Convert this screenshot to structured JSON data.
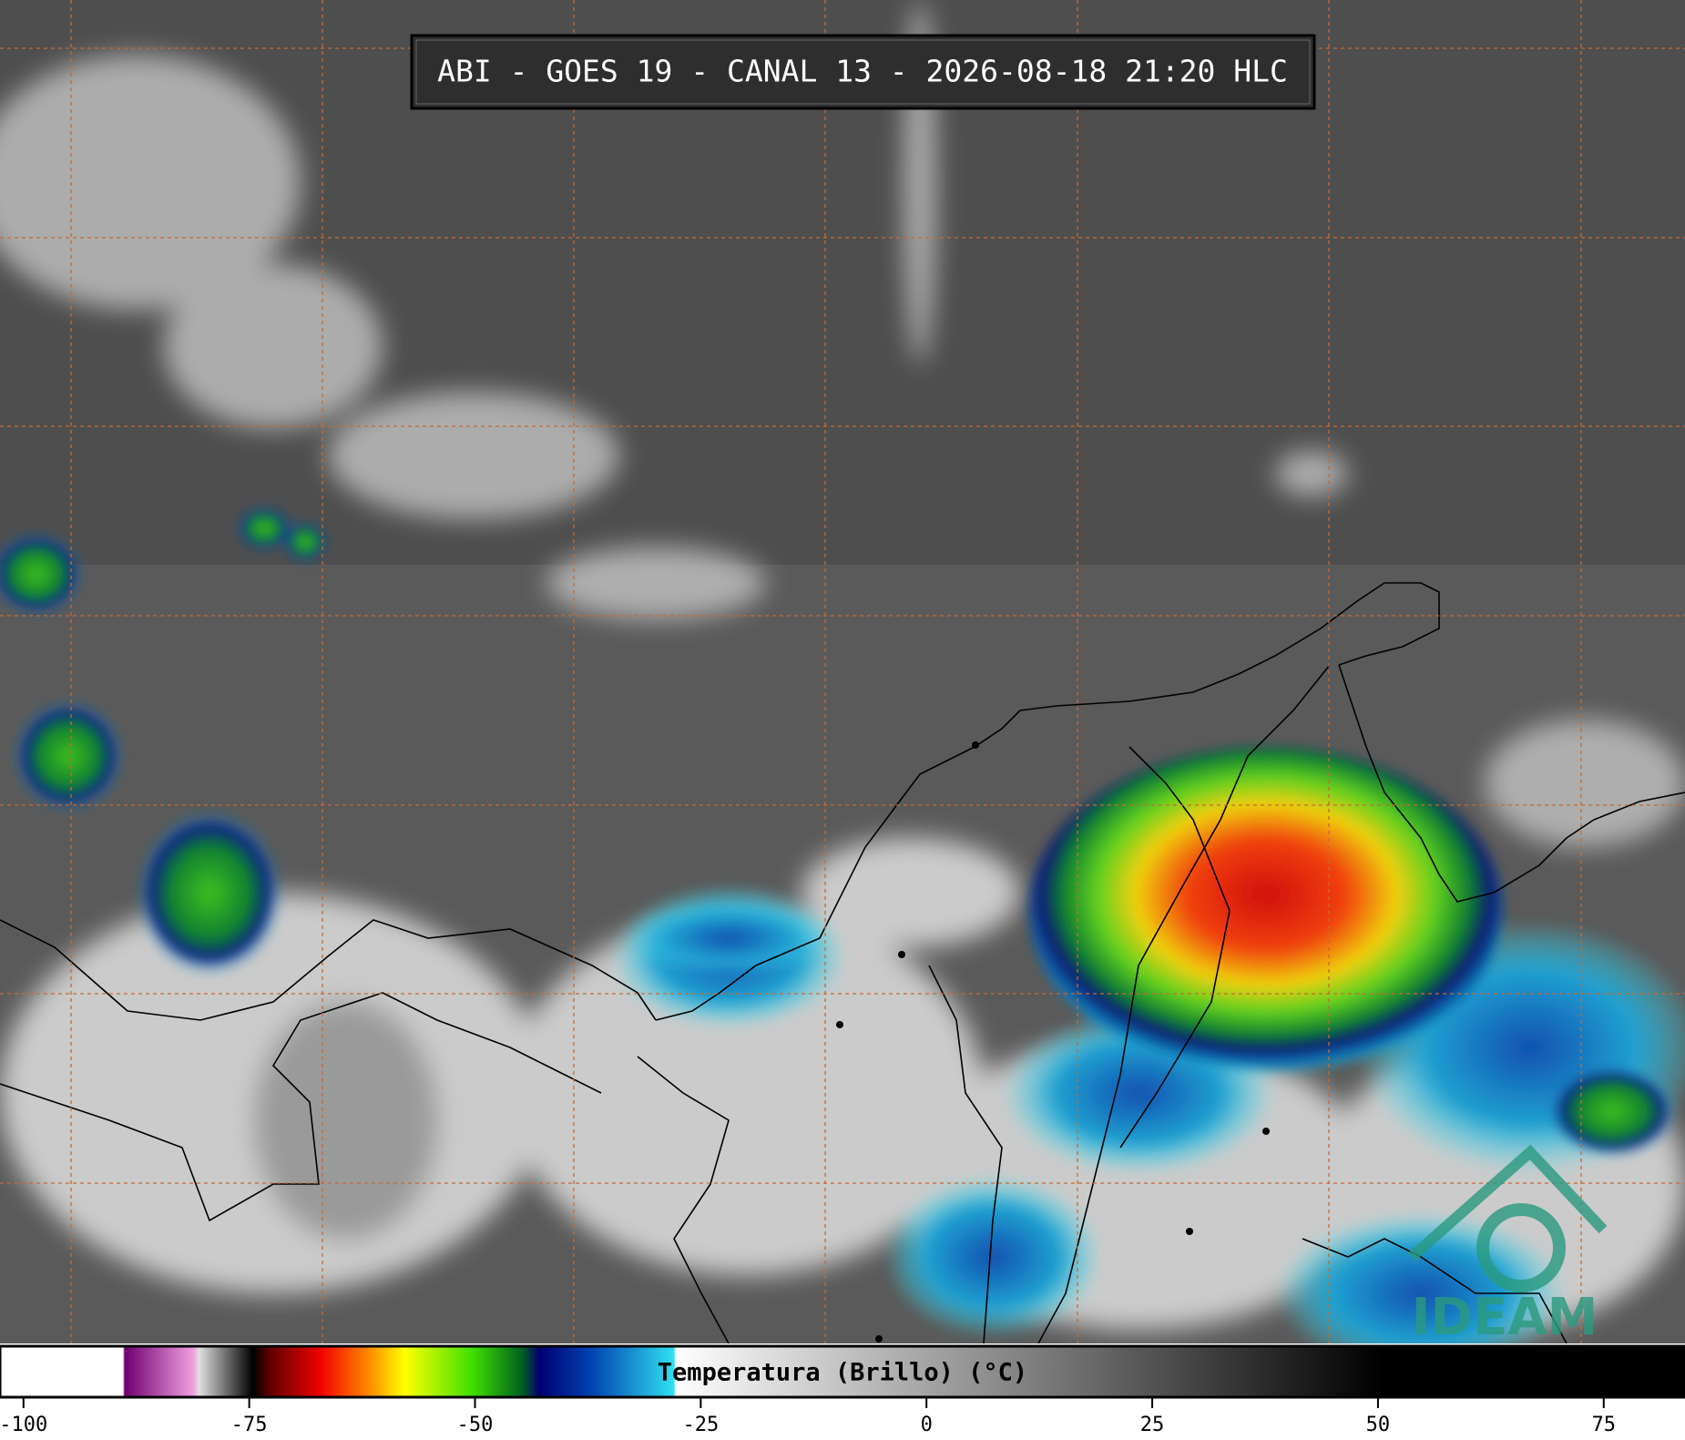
{
  "header": {
    "title": "ABI - GOES 19 - CANAL 13 - 2026-08-18 21:20 HLC"
  },
  "colorbar": {
    "label": "Temperatura (Brillo) (°C)",
    "xlim": [
      -102.6,
      84
    ],
    "xticks": [
      -100,
      -75,
      -50,
      -25,
      0,
      25,
      50,
      75
    ]
  },
  "logo": {
    "text": "IDEAM"
  }
}
